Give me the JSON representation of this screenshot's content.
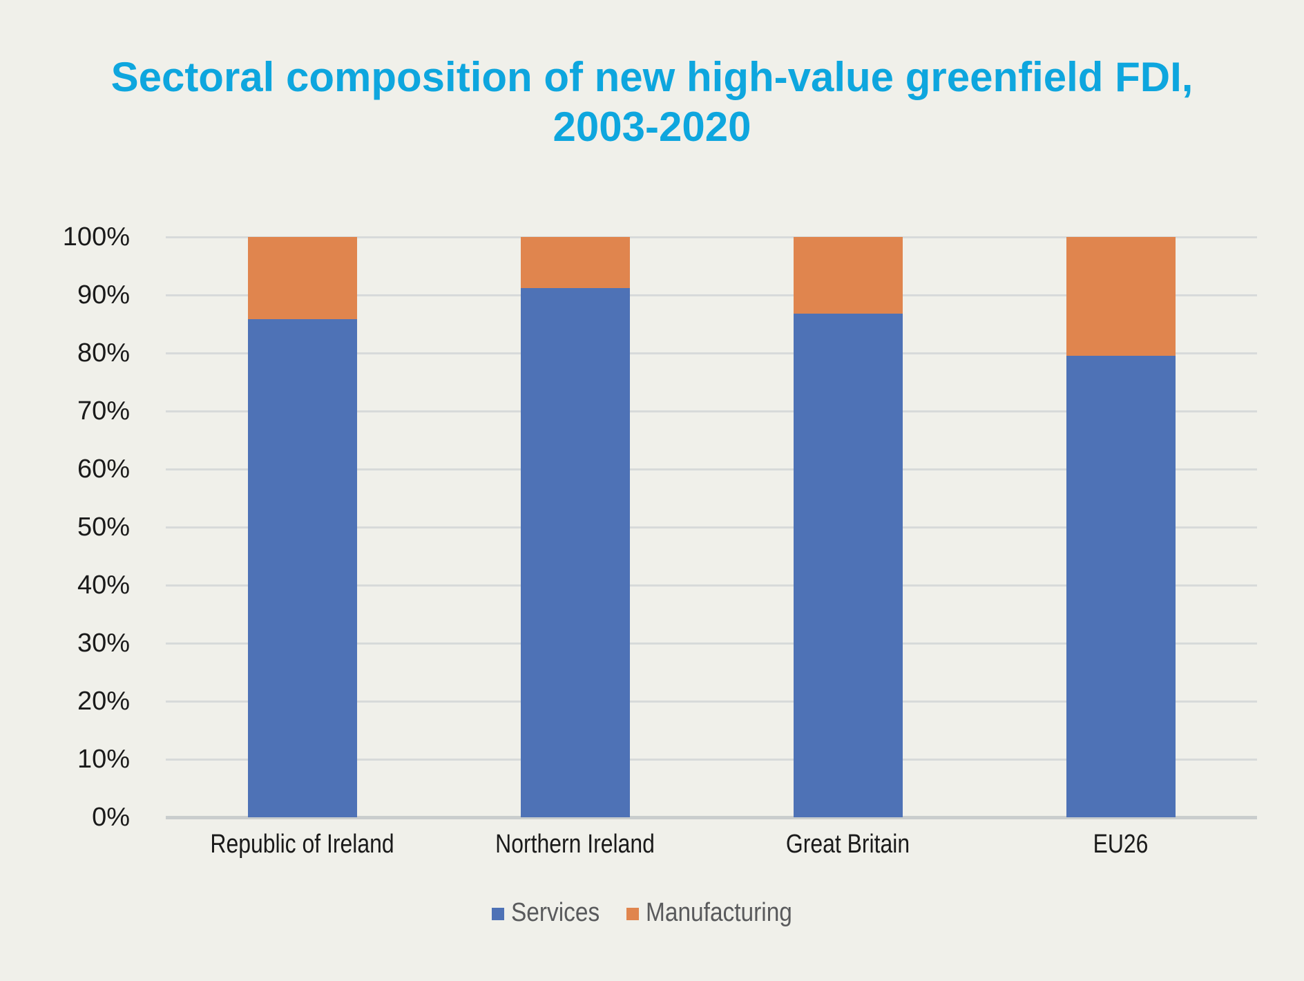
{
  "colors": {
    "background": "#f0f0ea",
    "title": "#0ea6de",
    "grid_line": "#d7dada",
    "axis_line": "#c9cdcd",
    "axis_text": "#1a1a1a",
    "legend_text": "#595a5c"
  },
  "chart_data": {
    "type": "bar",
    "subtype": "100-percent-stacked-column",
    "title": "Sectoral composition of new high-value greenfield FDI, 2003-2020",
    "title_lines": [
      "Sectoral composition of new high-value greenfield FDI,",
      "2003-2020"
    ],
    "categories": [
      "Republic of Ireland",
      "Northern Ireland",
      "Great Britain",
      "EU26"
    ],
    "series": [
      {
        "name": "Services",
        "color": "#4e72b6",
        "values": [
          85.8,
          91.2,
          86.8,
          79.5
        ]
      },
      {
        "name": "Manufacturing",
        "color": "#e0854e",
        "values": [
          14.2,
          8.8,
          13.2,
          20.5
        ]
      }
    ],
    "xlabel": "",
    "ylabel": "",
    "y_axis": {
      "min": 0,
      "max": 100,
      "step": 10,
      "unit": "%",
      "tick_labels": [
        "0%",
        "10%",
        "20%",
        "30%",
        "40%",
        "50%",
        "60%",
        "70%",
        "80%",
        "90%",
        "100%"
      ]
    },
    "ylim": [
      0,
      100
    ],
    "grid": true,
    "legend_position": "bottom"
  }
}
